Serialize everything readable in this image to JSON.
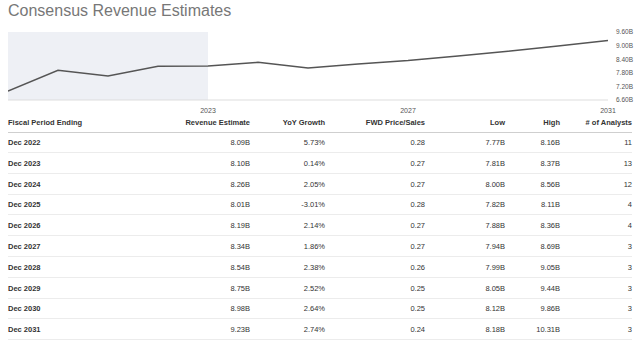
{
  "title": "Consensus Revenue Estimates",
  "chart_data": {
    "type": "line",
    "x": [
      2019,
      2020,
      2021,
      2022,
      2023,
      2024,
      2025,
      2026,
      2027,
      2028,
      2029,
      2030,
      2031
    ],
    "values": [
      6.99,
      7.91,
      7.66,
      8.09,
      8.1,
      8.26,
      8.01,
      8.19,
      8.34,
      8.54,
      8.75,
      8.98,
      9.23
    ],
    "color": "#555555",
    "xlim": [
      2019,
      2031
    ],
    "xticks": [
      2023,
      2027,
      2031
    ],
    "ylim": [
      6.6,
      9.6
    ],
    "yticks": [
      {
        "value": 6.6,
        "label": "6.60B"
      },
      {
        "value": 7.2,
        "label": "7.20B"
      },
      {
        "value": 7.8,
        "label": "7.80B"
      },
      {
        "value": 8.4,
        "label": "8.40B"
      },
      {
        "value": 9.0,
        "label": "9.00B"
      },
      {
        "value": 9.6,
        "label": "9.60B"
      }
    ],
    "grid": false
  },
  "table": {
    "columns": [
      "Fiscal Period Ending",
      "Revenue Estimate",
      "YoY Growth",
      "FWD Price/Sales",
      "Low",
      "High",
      "# of Analysts"
    ],
    "rows": [
      [
        "Dec 2022",
        "8.09B",
        "5.73%",
        "0.28",
        "7.77B",
        "8.16B",
        "11"
      ],
      [
        "Dec 2023",
        "8.10B",
        "0.14%",
        "0.27",
        "7.81B",
        "8.37B",
        "13"
      ],
      [
        "Dec 2024",
        "8.26B",
        "2.05%",
        "0.27",
        "8.00B",
        "8.56B",
        "12"
      ],
      [
        "Dec 2025",
        "8.01B",
        "-3.01%",
        "0.28",
        "7.82B",
        "8.11B",
        "4"
      ],
      [
        "Dec 2026",
        "8.19B",
        "2.14%",
        "0.27",
        "7.88B",
        "8.36B",
        "4"
      ],
      [
        "Dec 2027",
        "8.34B",
        "1.86%",
        "0.27",
        "7.94B",
        "8.69B",
        "3"
      ],
      [
        "Dec 2028",
        "8.54B",
        "2.38%",
        "0.26",
        "7.99B",
        "9.05B",
        "3"
      ],
      [
        "Dec 2029",
        "8.75B",
        "2.52%",
        "0.25",
        "8.05B",
        "9.44B",
        "3"
      ],
      [
        "Dec 2030",
        "8.98B",
        "2.64%",
        "0.25",
        "8.12B",
        "9.86B",
        "3"
      ],
      [
        "Dec 2031",
        "9.23B",
        "2.74%",
        "0.24",
        "8.18B",
        "10.31B",
        "3"
      ]
    ]
  }
}
